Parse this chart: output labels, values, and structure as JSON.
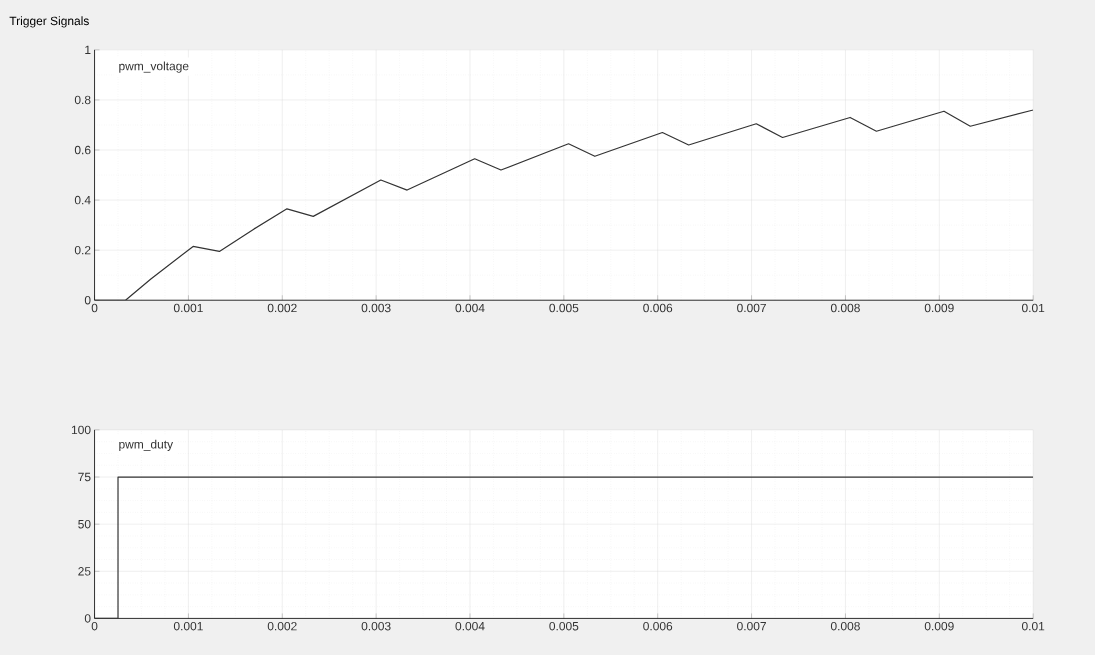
{
  "chart_data": [
    {
      "type": "line",
      "annotations": [
        "Trigger Signals"
      ],
      "x": [
        0,
        0.00033,
        0.0006,
        0.00105,
        0.00133,
        0.0017,
        0.00205,
        0.00233,
        0.00305,
        0.00333,
        0.00405,
        0.00433,
        0.00505,
        0.00533,
        0.00605,
        0.00633,
        0.00705,
        0.00733,
        0.00805,
        0.00833,
        0.00905,
        0.00933,
        0.01
      ],
      "series": [
        {
          "name": "pwm_voltage",
          "color": "#333333",
          "values": [
            0,
            0,
            0.085,
            0.215,
            0.195,
            0.285,
            0.365,
            0.335,
            0.48,
            0.44,
            0.565,
            0.52,
            0.625,
            0.575,
            0.67,
            0.62,
            0.705,
            0.65,
            0.73,
            0.675,
            0.755,
            0.695,
            0.76
          ]
        }
      ],
      "xlim": [
        0,
        0.01
      ],
      "ylim": [
        0,
        1
      ],
      "xticks": [
        0,
        0.001,
        0.002,
        0.003,
        0.004,
        0.005,
        0.006,
        0.007,
        0.008,
        0.009,
        0.01
      ],
      "yticks": [
        0,
        0.2,
        0.4,
        0.6,
        0.8,
        1
      ],
      "grid": true,
      "legend": "top left"
    },
    {
      "type": "step",
      "x": [
        0,
        0.00025,
        0.01
      ],
      "series": [
        {
          "name": "pwm_duty",
          "color": "#333333",
          "values": [
            0,
            75,
            75
          ]
        }
      ],
      "xlim": [
        0,
        0.01
      ],
      "ylim": [
        0,
        100
      ],
      "xticks": [
        0,
        0.001,
        0.002,
        0.003,
        0.004,
        0.005,
        0.006,
        0.007,
        0.008,
        0.009,
        0.01
      ],
      "yticks": [
        0,
        25,
        50,
        75,
        100
      ],
      "grid": true,
      "legend": "top left"
    }
  ]
}
